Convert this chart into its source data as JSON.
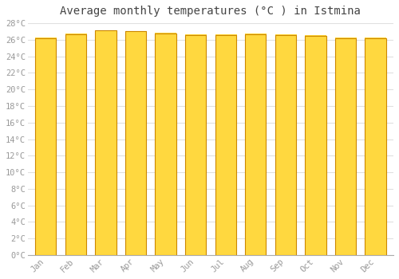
{
  "title": "Average monthly temperatures (°C ) in Istmina",
  "months": [
    "Jan",
    "Feb",
    "Mar",
    "Apr",
    "May",
    "Jun",
    "Jul",
    "Aug",
    "Sep",
    "Oct",
    "Nov",
    "Dec"
  ],
  "temperatures": [
    26.2,
    26.7,
    27.1,
    27.0,
    26.8,
    26.6,
    26.6,
    26.7,
    26.6,
    26.5,
    26.2,
    26.2
  ],
  "bar_color_left": "#FFAA00",
  "bar_color_center": "#FFD040",
  "bar_color_right": "#FFAA00",
  "bar_edge_color": "#CC8800",
  "background_color": "#ffffff",
  "plot_bg_color": "#ffffff",
  "grid_color": "#e0e0e0",
  "ylim": [
    0,
    28
  ],
  "yticks": [
    0,
    2,
    4,
    6,
    8,
    10,
    12,
    14,
    16,
    18,
    20,
    22,
    24,
    26,
    28
  ],
  "title_fontsize": 10,
  "tick_fontsize": 7.5,
  "tick_color": "#999999",
  "title_color": "#444444"
}
